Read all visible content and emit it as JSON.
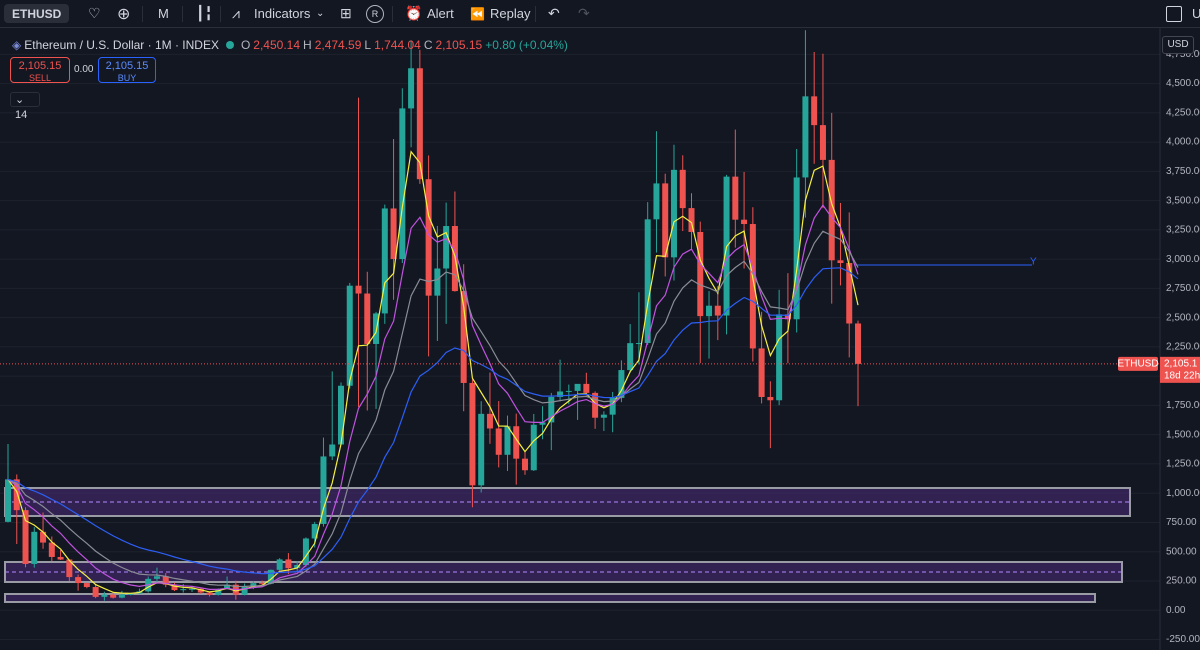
{
  "toolbar": {
    "symbol": "ETHUSD",
    "interval": "M",
    "indicators": "Indicators",
    "r_button": "R",
    "alert": "Alert",
    "replay": "Replay",
    "account": "U"
  },
  "legend": {
    "title": "Ethereum / U.S. Dollar · 1M · INDEX",
    "open_key": "O",
    "open": "2,450.14",
    "high_key": "H",
    "high": "2,474.59",
    "low_key": "L",
    "low": "1,744.04",
    "close_key": "C",
    "close": "2,105.15",
    "change": "+0.80 (+0.04%)"
  },
  "trade": {
    "sell_price": "2,105.15",
    "sell": "SELL",
    "spread": "0.00",
    "buy_price": "2,105.15",
    "buy": "BUY"
  },
  "indicator_count": "14",
  "currency": "USD",
  "drawing_label": "Y",
  "price_tag": {
    "symbol": "ETHUSD",
    "price": "2,105.1",
    "countdown": "18d 22h"
  },
  "chart_data": {
    "type": "candlestick",
    "up_color": "#26a69a",
    "down_color": "#ef5350",
    "grid": true,
    "ylim": [
      -340,
      4975
    ],
    "yticks": [
      {
        "value": -250,
        "label": "-250.00"
      },
      {
        "value": 0,
        "label": "0.00"
      },
      {
        "value": 250,
        "label": "250.00"
      },
      {
        "value": 500,
        "label": "500.00"
      },
      {
        "value": 750,
        "label": "750.00"
      },
      {
        "value": 1000,
        "label": "1,000.00"
      },
      {
        "value": 1250,
        "label": "1,250.00"
      },
      {
        "value": 1500,
        "label": "1,500.00"
      },
      {
        "value": 1750,
        "label": "1,750.00"
      },
      {
        "value": 2000,
        "label": "2,000.00"
      },
      {
        "value": 2250,
        "label": "2,250.00"
      },
      {
        "value": 2500,
        "label": "2,500.00"
      },
      {
        "value": 2750,
        "label": "2,750.00"
      },
      {
        "value": 3000,
        "label": "3,000.00"
      },
      {
        "value": 3250,
        "label": "3,250.00"
      },
      {
        "value": 3500,
        "label": "3,500.00"
      },
      {
        "value": 3750,
        "label": "3,750.00"
      },
      {
        "value": 4000,
        "label": "4,000.00"
      },
      {
        "value": 4250,
        "label": "4,250.00"
      },
      {
        "value": 4500,
        "label": "4,500.00"
      },
      {
        "value": 4750,
        "label": "4,750.00"
      }
    ],
    "open": [
      755,
      1118,
      855,
      395,
      670,
      578,
      455,
      433,
      283,
      232,
      198,
      114,
      133,
      107,
      136,
      141,
      161,
      268,
      290,
      218,
      172,
      180,
      183,
      151,
      130,
      180,
      218,
      133,
      206,
      231,
      226,
      345,
      434,
      360,
      386,
      613,
      737,
      1314,
      1416,
      1918,
      2773,
      2706,
      2275,
      2536,
      3433,
      3001,
      4288,
      4631,
      3683,
      2688,
      2920,
      3283,
      2727,
      1942,
      1067,
      1678,
      1553,
      1328,
      1572,
      1295,
      1196,
      1585,
      1605,
      1822,
      1869,
      1874,
      1934,
      1857,
      1645,
      1671,
      1814,
      2052,
      2282,
      2283,
      3340,
      3647,
      3015,
      3763,
      3436,
      3232,
      2513,
      2602,
      2518,
      3705,
      3337,
      3300,
      2237,
      1822,
      1794,
      2528,
      2486,
      3698,
      4391,
      4145,
      3848,
      2990,
      2967,
      2450.14
    ],
    "high": [
      1420,
      1160,
      880,
      710,
      835,
      630,
      515,
      435,
      305,
      235,
      225,
      158,
      160,
      165,
      148,
      185,
      288,
      364,
      317,
      235,
      224,
      198,
      195,
      156,
      186,
      288,
      253,
      228,
      250,
      253,
      348,
      445,
      488,
      420,
      622,
      755,
      1475,
      2041,
      1946,
      2797,
      4380,
      2892,
      2549,
      3466,
      4026,
      4460,
      4869,
      4788,
      3886,
      3284,
      3483,
      3578,
      2956,
      1972,
      1786,
      2031,
      1787,
      1663,
      1680,
      1352,
      1677,
      1743,
      1857,
      2141,
      1928,
      1931,
      2029,
      1870,
      1700,
      1865,
      2135,
      2445,
      2717,
      3487,
      4093,
      3730,
      3977,
      3887,
      3563,
      3320,
      2727,
      2769,
      3720,
      4107,
      3745,
      3443,
      2550,
      1956,
      2738,
      2880,
      3941,
      4956,
      4770,
      4755,
      4250,
      3480,
      3400,
      2474.59
    ],
    "low": [
      751,
      566,
      367,
      364,
      525,
      419,
      429,
      250,
      167,
      188,
      103,
      82,
      100,
      102,
      127,
      137,
      151,
      227,
      197,
      164,
      151,
      156,
      139,
      117,
      126,
      178,
      90,
      127,
      180,
      216,
      222,
      340,
      309,
      336,
      372,
      536,
      714,
      1283,
      1413,
      1894,
      1735,
      1706,
      1720,
      2447,
      2653,
      2967,
      3956,
      3643,
      2169,
      2301,
      2447,
      2722,
      1700,
      880,
      1006,
      1422,
      1220,
      1190,
      1073,
      1157,
      1190,
      1461,
      1368,
      1785,
      1760,
      1626,
      1834,
      1550,
      1531,
      1521,
      1778,
      2030,
      2100,
      2266,
      3056,
      2852,
      2817,
      3240,
      3087,
      2111,
      2150,
      2308,
      2357,
      3098,
      2920,
      2125,
      1767,
      1385,
      1752,
      2111,
      2373,
      3355,
      3815,
      3436,
      2620,
      2775,
      2160,
      1744.04
    ],
    "close": [
      1118,
      855,
      395,
      670,
      578,
      455,
      433,
      283,
      232,
      198,
      114,
      133,
      107,
      136,
      141,
      161,
      268,
      290,
      218,
      172,
      180,
      183,
      151,
      130,
      180,
      218,
      133,
      206,
      231,
      226,
      345,
      434,
      360,
      386,
      613,
      737,
      1314,
      1416,
      1918,
      2773,
      2706,
      2275,
      2536,
      3433,
      3001,
      4288,
      4631,
      3683,
      2688,
      2920,
      3283,
      2727,
      1942,
      1067,
      1678,
      1553,
      1328,
      1572,
      1295,
      1196,
      1585,
      1605,
      1822,
      1869,
      1874,
      1934,
      1857,
      1645,
      1671,
      1814,
      2052,
      2282,
      2283,
      3340,
      3647,
      3015,
      3763,
      3436,
      3232,
      2513,
      2602,
      2518,
      3705,
      3337,
      3300,
      2237,
      1822,
      1794,
      2528,
      2486,
      3698,
      4391,
      4145,
      3848,
      2990,
      2967,
      2450,
      2105.15
    ]
  }
}
